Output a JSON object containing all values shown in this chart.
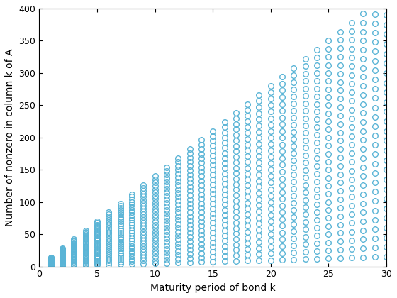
{
  "title": "",
  "xlabel": "Maturity period of bond k",
  "ylabel": "Number of nonzero in column k of A",
  "xlim": [
    0.5,
    30
  ],
  "ylim": [
    0,
    400
  ],
  "xticks": [
    0,
    5,
    10,
    15,
    20,
    25,
    30
  ],
  "yticks": [
    0,
    50,
    100,
    150,
    200,
    250,
    300,
    350,
    400
  ],
  "marker_color": "#5ab4d6",
  "marker": "o",
  "marker_size": 5.5,
  "marker_linewidth": 1.0,
  "series_slopes": [
    1,
    2,
    3,
    4,
    5,
    6,
    7,
    8,
    9,
    10,
    11,
    12,
    13,
    14
  ],
  "x_max": 30
}
